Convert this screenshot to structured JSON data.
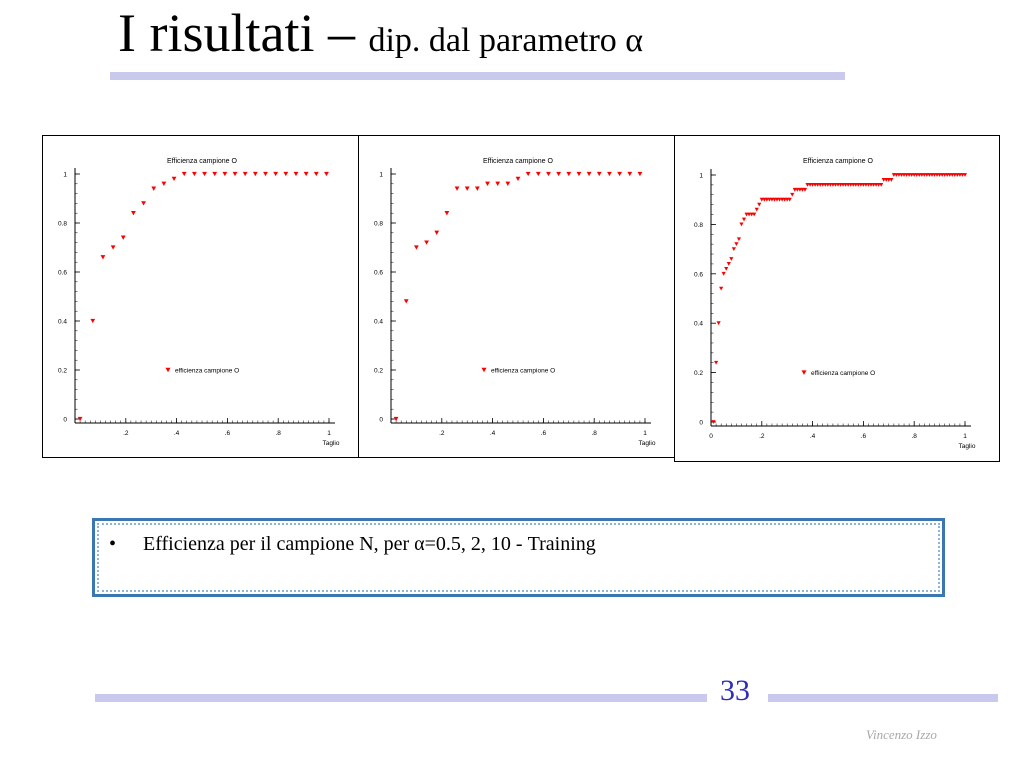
{
  "slide": {
    "title_main": "I risultati – ",
    "title_sub": "dip. dal parametro α",
    "bullet_marker": "•",
    "bullet_text": "Efficienza per il campione N, per α=0.5, 2, 10 - Training",
    "page_number": "33",
    "author": "Vincenzo Izzo",
    "colors": {
      "rule": "#c9c9ee",
      "page_number": "#2d2db8",
      "marker": "#ff0000",
      "box_border": "#3b77b0"
    }
  },
  "chart_data": [
    {
      "type": "scatter",
      "title": "Efficienza campione O",
      "xlabel": "Taglio",
      "ylabel": "",
      "xlim": [
        0,
        1
      ],
      "ylim": [
        0,
        1
      ],
      "x_ticks": [
        ".2",
        ".4",
        ".6",
        ".8",
        "1"
      ],
      "x_tick_values": [
        0.2,
        0.4,
        0.6,
        0.8,
        1
      ],
      "y_ticks": [
        "0",
        "0.2",
        "0.4",
        "0.6",
        "0.8",
        "1"
      ],
      "y_tick_values": [
        0,
        0.2,
        0.4,
        0.6,
        0.8,
        1
      ],
      "legend": "efficienza campione O",
      "legend_position": "center-bottom",
      "marker": "triangle-down",
      "series": [
        {
          "x": [
            0.02,
            0.07,
            0.11,
            0.15,
            0.19,
            0.23,
            0.27,
            0.31,
            0.35,
            0.39,
            0.43,
            0.47,
            0.51,
            0.55,
            0.59,
            0.63,
            0.67,
            0.71,
            0.75,
            0.79,
            0.83,
            0.87,
            0.91,
            0.95,
            0.99
          ],
          "y": [
            0.0,
            0.4,
            0.66,
            0.7,
            0.74,
            0.84,
            0.88,
            0.94,
            0.96,
            0.98,
            1,
            1,
            1,
            1,
            1,
            1,
            1,
            1,
            1,
            1,
            1,
            1,
            1,
            1,
            1
          ]
        }
      ]
    },
    {
      "type": "scatter",
      "title": "Efficienza campione O",
      "xlabel": "Taglio",
      "ylabel": "",
      "xlim": [
        0,
        1
      ],
      "ylim": [
        0,
        1
      ],
      "x_ticks": [
        ".2",
        ".4",
        ".6",
        ".8",
        "1"
      ],
      "x_tick_values": [
        0.2,
        0.4,
        0.6,
        0.8,
        1
      ],
      "y_ticks": [
        "0",
        "0.2",
        "0.4",
        "0.6",
        "0.8",
        "1"
      ],
      "y_tick_values": [
        0,
        0.2,
        0.4,
        0.6,
        0.8,
        1
      ],
      "legend": "efficienza campione O",
      "legend_position": "center-bottom",
      "marker": "triangle-down",
      "series": [
        {
          "x": [
            0.02,
            0.06,
            0.1,
            0.14,
            0.18,
            0.22,
            0.26,
            0.3,
            0.34,
            0.38,
            0.42,
            0.46,
            0.5,
            0.54,
            0.58,
            0.62,
            0.66,
            0.7,
            0.74,
            0.78,
            0.82,
            0.86,
            0.9,
            0.94,
            0.98
          ],
          "y": [
            0.0,
            0.48,
            0.7,
            0.72,
            0.76,
            0.84,
            0.94,
            0.94,
            0.94,
            0.96,
            0.96,
            0.96,
            0.98,
            1,
            1,
            1,
            1,
            1,
            1,
            1,
            1,
            1,
            1,
            1,
            1
          ]
        }
      ]
    },
    {
      "type": "scatter",
      "title": "Efficienza campione O",
      "xlabel": "Taglio",
      "ylabel": "",
      "xlim": [
        0,
        1
      ],
      "ylim": [
        0,
        1
      ],
      "x_ticks": [
        "0",
        ".2",
        ".4",
        ".6",
        ".8",
        "1"
      ],
      "x_tick_values": [
        0,
        0.2,
        0.4,
        0.6,
        0.8,
        1
      ],
      "y_ticks": [
        "0",
        "0.2",
        "0.4",
        "0.6",
        "0.8",
        "1"
      ],
      "y_tick_values": [
        0,
        0.2,
        0.4,
        0.6,
        0.8,
        1
      ],
      "legend": "efficienza campione O",
      "legend_position": "center-bottom",
      "marker": "triangle-down",
      "series": [
        {
          "x": [
            0.01,
            0.02,
            0.03,
            0.04,
            0.05,
            0.06,
            0.07,
            0.08,
            0.09,
            0.1,
            0.11,
            0.12,
            0.13,
            0.14,
            0.15,
            0.16,
            0.17,
            0.18,
            0.19,
            0.2,
            0.21,
            0.22,
            0.23,
            0.24,
            0.25,
            0.26,
            0.27,
            0.28,
            0.29,
            0.3,
            0.31,
            0.32,
            0.33,
            0.34,
            0.35,
            0.36,
            0.37,
            0.38,
            0.39,
            0.4,
            0.41,
            0.42,
            0.43,
            0.44,
            0.45,
            0.46,
            0.47,
            0.48,
            0.49,
            0.5,
            0.51,
            0.52,
            0.53,
            0.54,
            0.55,
            0.56,
            0.57,
            0.58,
            0.59,
            0.6,
            0.61,
            0.62,
            0.63,
            0.64,
            0.65,
            0.66,
            0.67,
            0.68,
            0.69,
            0.7,
            0.71,
            0.72,
            0.73,
            0.74,
            0.75,
            0.76,
            0.77,
            0.78,
            0.79,
            0.8,
            0.81,
            0.82,
            0.83,
            0.84,
            0.85,
            0.86,
            0.87,
            0.88,
            0.89,
            0.9,
            0.91,
            0.92,
            0.93,
            0.94,
            0.95,
            0.96,
            0.97,
            0.98,
            0.99,
            1.0
          ],
          "y": [
            0.0,
            0.24,
            0.4,
            0.54,
            0.6,
            0.62,
            0.64,
            0.66,
            0.7,
            0.72,
            0.74,
            0.8,
            0.82,
            0.84,
            0.84,
            0.84,
            0.84,
            0.86,
            0.88,
            0.9,
            0.9,
            0.9,
            0.9,
            0.9,
            0.9,
            0.9,
            0.9,
            0.9,
            0.9,
            0.9,
            0.9,
            0.92,
            0.94,
            0.94,
            0.94,
            0.94,
            0.94,
            0.96,
            0.96,
            0.96,
            0.96,
            0.96,
            0.96,
            0.96,
            0.96,
            0.96,
            0.96,
            0.96,
            0.96,
            0.96,
            0.96,
            0.96,
            0.96,
            0.96,
            0.96,
            0.96,
            0.96,
            0.96,
            0.96,
            0.96,
            0.96,
            0.96,
            0.96,
            0.96,
            0.96,
            0.96,
            0.96,
            0.98,
            0.98,
            0.98,
            0.98,
            1,
            1,
            1,
            1,
            1,
            1,
            1,
            1,
            1,
            1,
            1,
            1,
            1,
            1,
            1,
            1,
            1,
            1,
            1,
            1,
            1,
            1,
            1,
            1,
            1,
            1,
            1,
            1,
            1
          ]
        }
      ]
    }
  ]
}
